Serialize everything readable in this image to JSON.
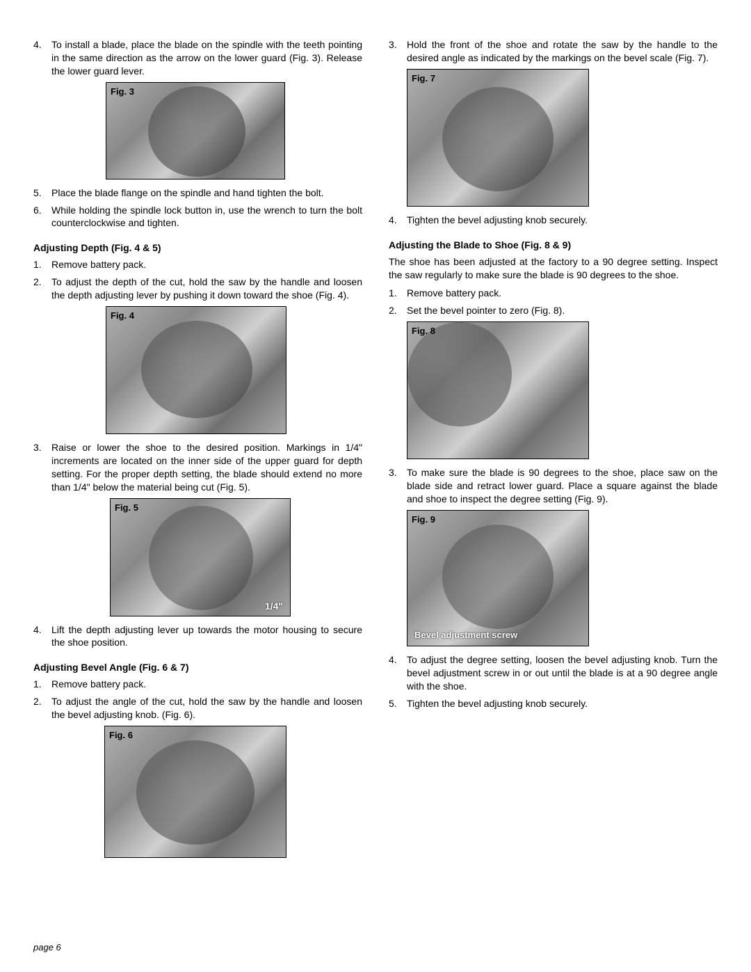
{
  "page_label": "page 6",
  "left": {
    "items_a": [
      {
        "n": "4.",
        "t": "To install a blade, place the blade on the spindle with the teeth pointing in the same direction as the arrow on the lower guard (Fig. 3). Release the lower guard lever."
      }
    ],
    "fig3_label": "Fig. 3",
    "items_b": [
      {
        "n": "5.",
        "t": "Place the blade flange on the spindle and hand tighten the bolt."
      },
      {
        "n": "6.",
        "t": "While holding the spindle lock button in, use the wrench to turn the bolt counterclockwise and tighten."
      }
    ],
    "heading_depth": "Adjusting Depth (Fig. 4 & 5)",
    "items_c": [
      {
        "n": "1.",
        "t": "Remove battery pack."
      },
      {
        "n": "2.",
        "t": "To adjust the depth of the cut, hold the saw by the handle and loosen the depth adjusting lever by pushing it down toward the shoe (Fig. 4)."
      }
    ],
    "fig4_label": "Fig. 4",
    "items_d": [
      {
        "n": "3.",
        "t": "Raise or lower the shoe to the desired position. Markings in 1/4\" increments are located on the inner side of the upper guard for depth setting. For the proper depth setting, the blade should extend no more than 1/4\" below the material being cut (Fig. 5)."
      }
    ],
    "fig5_label": "Fig. 5",
    "fig5_overlay": "1/4\"",
    "items_e": [
      {
        "n": "4.",
        "t": "Lift the depth adjusting lever up towards the motor housing to secure the shoe position."
      }
    ],
    "heading_bevel": "Adjusting Bevel Angle (Fig. 6 & 7)",
    "items_f": [
      {
        "n": "1.",
        "t": "Remove battery pack."
      },
      {
        "n": "2.",
        "t": "To adjust the angle of the cut, hold the saw by the handle and loosen the bevel adjusting knob. (Fig. 6)."
      }
    ],
    "fig6_label": "Fig. 6"
  },
  "right": {
    "items_a": [
      {
        "n": "3.",
        "t": "Hold the front of the shoe and rotate the saw by the handle to the desired angle as indicated by the markings on the bevel scale (Fig. 7)."
      }
    ],
    "fig7_label": "Fig. 7",
    "items_b": [
      {
        "n": "4.",
        "t": "Tighten the bevel adjusting knob securely."
      }
    ],
    "heading_blade": "Adjusting the Blade to Shoe (Fig. 8 & 9)",
    "para_blade": "The shoe has been adjusted at the factory to a 90 degree setting. Inspect the saw regularly to make sure the blade is 90 degrees to the shoe.",
    "items_c": [
      {
        "n": "1.",
        "t": "Remove battery pack."
      },
      {
        "n": "2.",
        "t": "Set the bevel pointer to zero (Fig. 8)."
      }
    ],
    "fig8_label": "Fig. 8",
    "items_d": [
      {
        "n": "3.",
        "t": "To make sure the blade is 90 degrees to the shoe, place saw on the blade side and retract lower guard. Place a square against the blade and shoe to inspect the degree setting (Fig. 9)."
      }
    ],
    "fig9_label": "Fig. 9",
    "fig9_overlay": "Bevel adjustment screw",
    "items_e": [
      {
        "n": "4.",
        "t": "To adjust the degree setting, loosen the bevel adjusting knob. Turn the bevel adjustment screw in or out until the blade is at a 90 degree angle with the shoe."
      },
      {
        "n": "5.",
        "t": "Tighten the bevel adjusting knob securely."
      }
    ]
  }
}
